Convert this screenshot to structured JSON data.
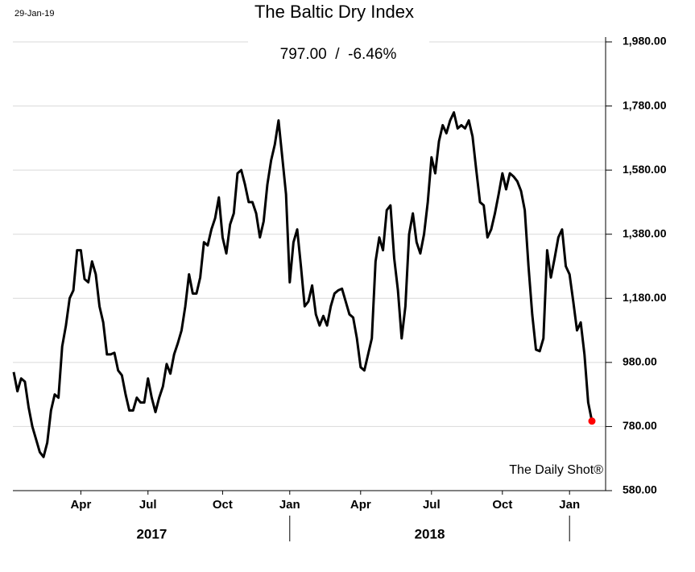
{
  "chart_data": {
    "type": "line",
    "title": "The Baltic Dry Index",
    "subtitle": "797.00  /  -6.46%",
    "date": "29-Jan-19",
    "source": "The Daily Shot®",
    "years": [
      "2017",
      "2018"
    ],
    "categories": [
      null,
      null,
      null,
      null,
      null,
      null,
      null,
      null,
      null,
      null,
      null,
      null,
      null,
      null,
      null,
      null,
      null,
      null,
      "Apr",
      null,
      null,
      null,
      null,
      null,
      null,
      null,
      null,
      null,
      null,
      null,
      null,
      null,
      null,
      null,
      null,
      null,
      "Jul",
      null,
      null,
      null,
      null,
      null,
      null,
      null,
      null,
      null,
      null,
      null,
      null,
      null,
      null,
      null,
      null,
      null,
      null,
      null,
      "Oct",
      null,
      null,
      null,
      null,
      null,
      null,
      null,
      null,
      null,
      null,
      null,
      null,
      null,
      null,
      null,
      null,
      null,
      "Jan",
      null,
      null,
      null,
      null,
      null,
      null,
      null,
      null,
      null,
      null,
      null,
      null,
      null,
      null,
      null,
      null,
      null,
      null,
      "Apr",
      null,
      null,
      null,
      null,
      null,
      null,
      null,
      null,
      null,
      null,
      null,
      null,
      null,
      null,
      null,
      null,
      null,
      null,
      "Jul",
      null,
      null,
      null,
      null,
      null,
      null,
      null,
      null,
      null,
      null,
      null,
      null,
      null,
      null,
      null,
      null,
      null,
      null,
      "Oct",
      null,
      null,
      null,
      null,
      null,
      null,
      null,
      null,
      null,
      null,
      null,
      null,
      null,
      null,
      null,
      null,
      null,
      "Jan",
      null,
      null,
      null,
      null,
      null,
      null
    ],
    "series": [
      {
        "name": "Baltic Dry Index",
        "color": "#000000",
        "values": [
          950,
          890,
          930,
          920,
          840,
          780,
          740,
          700,
          685,
          730,
          830,
          880,
          870,
          1030,
          1095,
          1180,
          1205,
          1330,
          1330,
          1240,
          1230,
          1295,
          1255,
          1155,
          1105,
          1005,
          1005,
          1010,
          955,
          940,
          880,
          830,
          830,
          870,
          855,
          855,
          930,
          870,
          825,
          870,
          905,
          975,
          945,
          1005,
          1040,
          1080,
          1155,
          1255,
          1195,
          1195,
          1245,
          1355,
          1345,
          1395,
          1430,
          1495,
          1370,
          1320,
          1410,
          1445,
          1570,
          1580,
          1535,
          1480,
          1480,
          1445,
          1370,
          1420,
          1535,
          1610,
          1660,
          1735,
          1620,
          1505,
          1230,
          1355,
          1395,
          1280,
          1155,
          1170,
          1220,
          1130,
          1095,
          1125,
          1095,
          1155,
          1195,
          1205,
          1210,
          1170,
          1130,
          1120,
          1055,
          965,
          955,
          1005,
          1055,
          1295,
          1370,
          1330,
          1455,
          1470,
          1305,
          1205,
          1055,
          1155,
          1380,
          1445,
          1355,
          1320,
          1380,
          1480,
          1620,
          1570,
          1670,
          1720,
          1695,
          1735,
          1760,
          1710,
          1720,
          1710,
          1735,
          1685,
          1580,
          1480,
          1470,
          1370,
          1395,
          1445,
          1505,
          1570,
          1520,
          1570,
          1560,
          1545,
          1515,
          1455,
          1280,
          1130,
          1020,
          1015,
          1055,
          1330,
          1245,
          1305,
          1370,
          1395,
          1280,
          1255,
          1170,
          1080,
          1105,
          1005,
          855,
          797
        ]
      }
    ],
    "last_point_color": "#ff0000",
    "ylim": [
      580,
      1980
    ],
    "yticks": [
      {
        "value": 580,
        "label": "580.00"
      },
      {
        "value": 780,
        "label": "780.00"
      },
      {
        "value": 980,
        "label": "980.00"
      },
      {
        "value": 1180,
        "label": "1,180.00"
      },
      {
        "value": 1380,
        "label": "1,380.00"
      },
      {
        "value": 1580,
        "label": "1,580.00"
      },
      {
        "value": 1780,
        "label": "1,780.00"
      },
      {
        "value": 1980,
        "label": "1,980.00"
      }
    ],
    "grid": true
  }
}
